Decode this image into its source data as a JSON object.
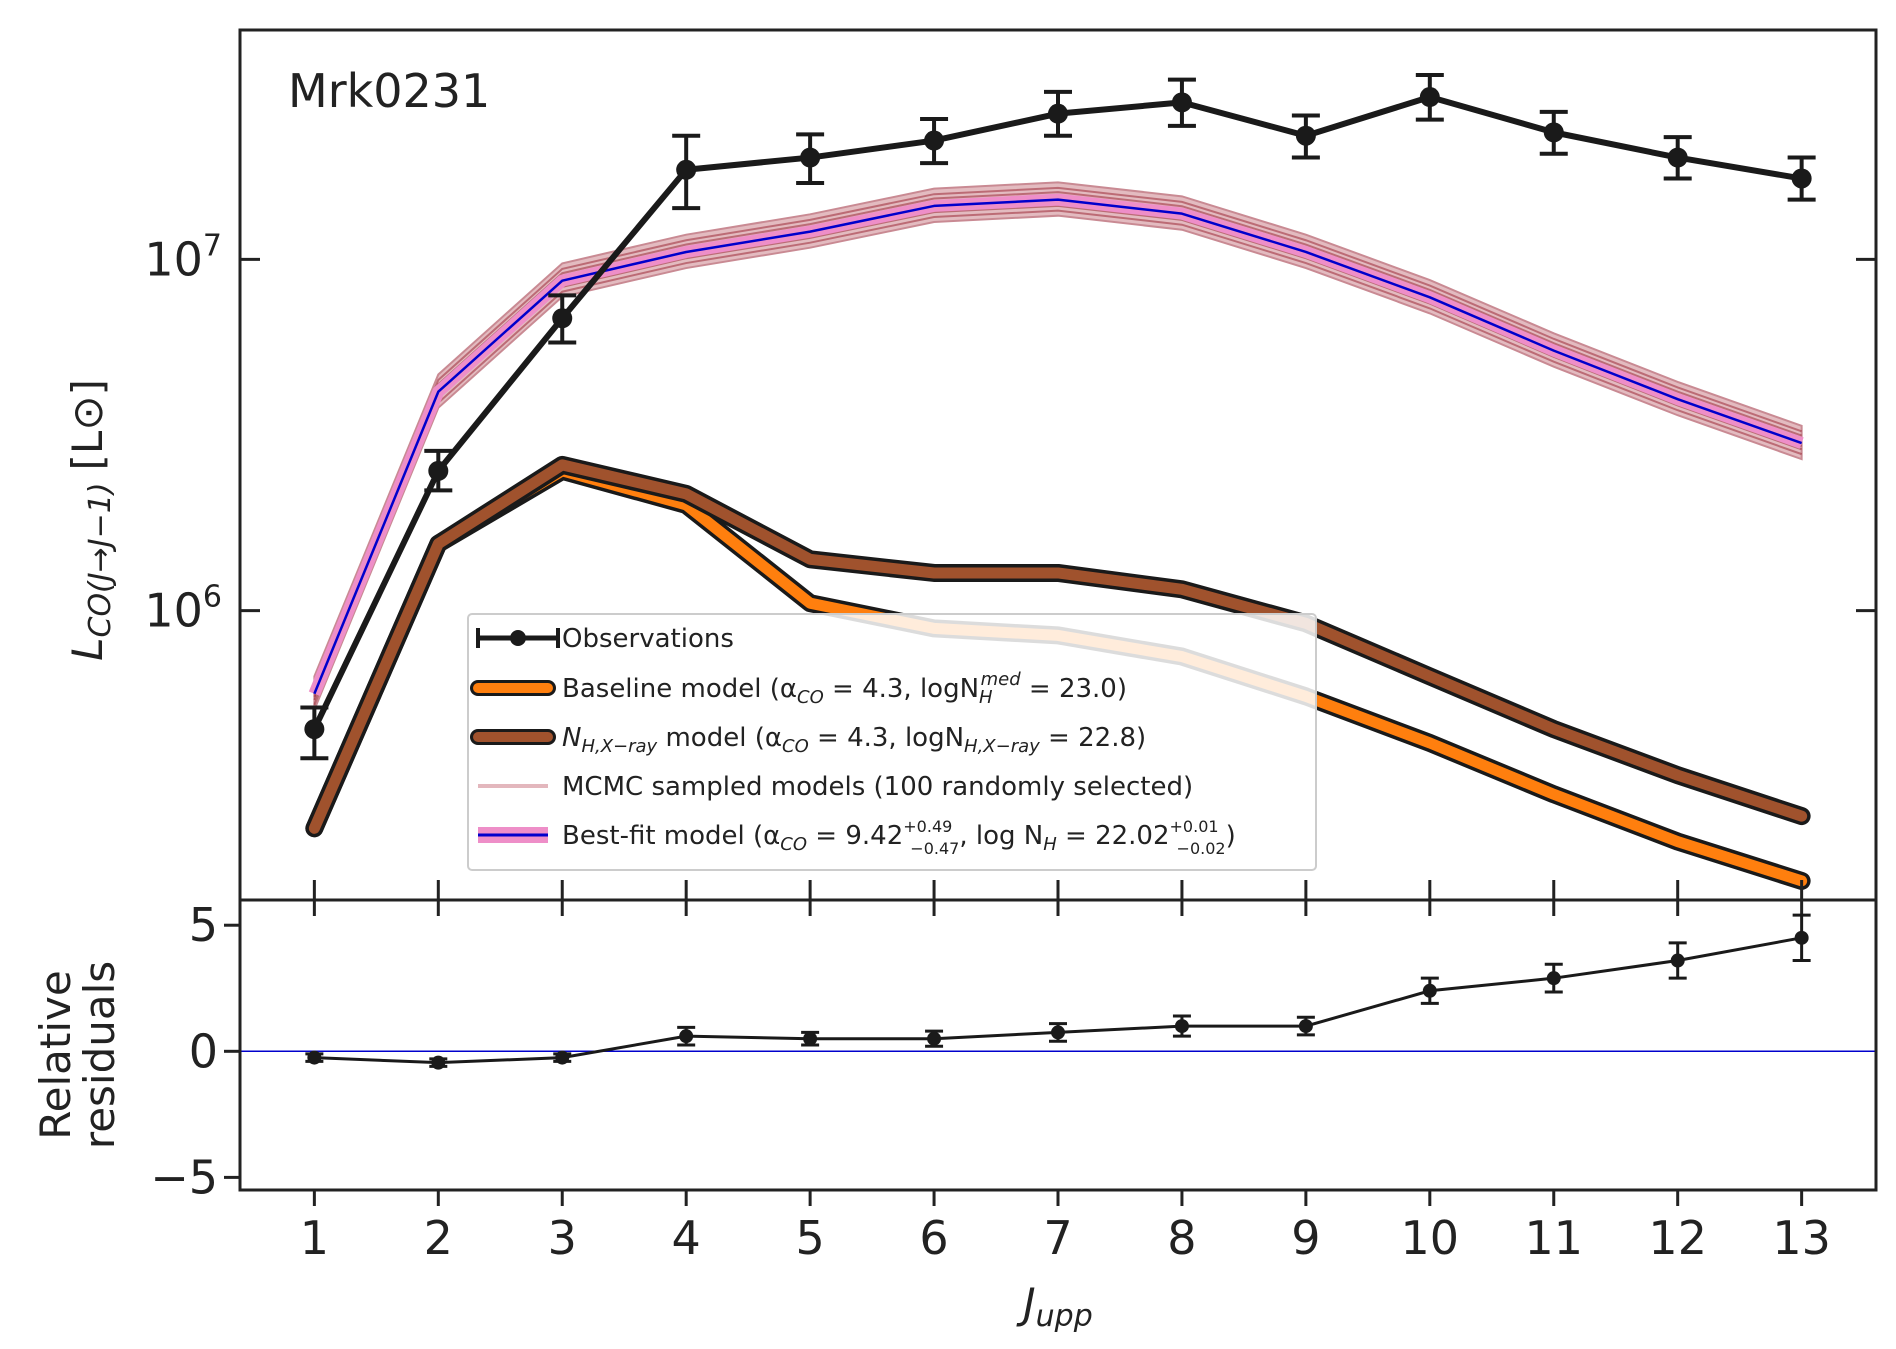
{
  "chart_data": [
    {
      "type": "line",
      "panel": "main",
      "title": "Mrk0231",
      "xlabel": "J",
      "xlabel_sub": "upp",
      "ylabel": "L",
      "ylabel_sub": "CO(J→J−1)",
      "ylabel_unit": "[L⊙]",
      "yscale": "log",
      "ylim": [
        150000,
        45000000
      ],
      "xlim": [
        0.4,
        13.6
      ],
      "x": [
        1,
        2,
        3,
        4,
        5,
        6,
        7,
        8,
        9,
        10,
        11,
        12,
        13
      ],
      "y_ticks": [
        {
          "value": 1000000,
          "base": "10",
          "exp": "6"
        },
        {
          "value": 10000000,
          "base": "10",
          "exp": "7"
        }
      ],
      "x_tick_labels": [
        "1",
        "2",
        "3",
        "4",
        "5",
        "6",
        "7",
        "8",
        "9",
        "10",
        "11",
        "12",
        "13"
      ],
      "series": [
        {
          "name": "Observations",
          "values": [
            460000,
            2500000,
            6800000,
            18000000,
            19500000,
            21800000,
            26000000,
            28000000,
            22500000,
            29000000,
            23000000,
            19500000,
            17000000
          ],
          "err_lo": [
            80000,
            300000,
            1000000,
            4000000,
            3000000,
            3000000,
            3500000,
            4000000,
            3000000,
            4000000,
            3000000,
            2500000,
            2200000
          ],
          "err_hi": [
            70000,
            350000,
            1100000,
            4500000,
            3200000,
            3300000,
            4000000,
            4500000,
            3200000,
            4500000,
            3300000,
            2800000,
            2500000
          ],
          "color": "#1a1a1a"
        },
        {
          "name": "Baseline model (αCO = 4.3, logN_H^med = 23.0)",
          "values": [
            240000,
            1550000,
            2500000,
            2000000,
            1050000,
            890000,
            850000,
            740000,
            570000,
            420000,
            300000,
            220000,
            170000
          ],
          "color": "#ff7f0e"
        },
        {
          "name": "N_H,X−ray model (αCO = 4.3, logN_H,X−ray = 22.8)",
          "values": [
            240000,
            1550000,
            2600000,
            2150000,
            1400000,
            1280000,
            1280000,
            1150000,
            920000,
            650000,
            460000,
            340000,
            260000
          ],
          "color": "#a0522d"
        },
        {
          "name": "MCMC sampled models (100 randomly selected)",
          "values": [
            580000,
            4200000,
            8700000,
            10500000,
            12000000,
            14200000,
            14800000,
            13500000,
            10500000,
            7800000,
            5500000,
            4000000,
            3000000
          ],
          "color": "#e3b7bd"
        },
        {
          "name": "Best-fit model (αCO = 9.42, log N_H = 22.02)",
          "values": [
            580000,
            4200000,
            8700000,
            10500000,
            12000000,
            14200000,
            14800000,
            13500000,
            10500000,
            7800000,
            5500000,
            4000000,
            3000000
          ],
          "color": "#0000cc",
          "band_color": "#ee8ec8"
        }
      ]
    },
    {
      "type": "line",
      "panel": "residuals",
      "ylabel_line1": "Relative",
      "ylabel_line2": "residuals",
      "ylim": [
        -5.5,
        6
      ],
      "xlim": [
        0.4,
        13.6
      ],
      "y_ticks": [
        -5,
        0,
        5
      ],
      "y_tick_labels": [
        "−5",
        "0",
        "5"
      ],
      "x": [
        1,
        2,
        3,
        4,
        5,
        6,
        7,
        8,
        9,
        10,
        11,
        12,
        13
      ],
      "series": [
        {
          "name": "Relative residuals",
          "values": [
            -0.25,
            -0.45,
            -0.25,
            0.6,
            0.5,
            0.5,
            0.75,
            1.0,
            1.0,
            2.4,
            2.9,
            3.6,
            4.5
          ],
          "err": [
            0.15,
            0.15,
            0.15,
            0.35,
            0.25,
            0.3,
            0.35,
            0.4,
            0.35,
            0.5,
            0.55,
            0.7,
            0.9
          ],
          "color": "#1a1a1a"
        }
      ],
      "reference_line": {
        "value": 0,
        "color": "#0000cc"
      }
    }
  ],
  "legend": {
    "location": "lower-center",
    "entries": [
      {
        "key": "obs",
        "label": "Observations"
      },
      {
        "key": "baseline",
        "label": "Baseline model (α",
        "sub1": "CO",
        "mid": " = 4.3, logN",
        "sub2": "H",
        "sup2": "med",
        "end": " = 23.0)"
      },
      {
        "key": "nhx",
        "label": "N",
        "sub1": "H,X−ray",
        "mid": " model (α",
        "sub2": "CO",
        "mid2": " = 4.3, logN",
        "sub3": "H,X−ray",
        "end": " = 22.8)"
      },
      {
        "key": "mcmc",
        "label": "MCMC sampled models (100 randomly selected)"
      },
      {
        "key": "best",
        "label": "Best-fit model (α",
        "sub1": "CO",
        "mid": " = 9.42",
        "up1": "+0.49",
        "lo1": "−0.47",
        "mid2": ", log N",
        "sub2": "H",
        "mid3": " = 22.02",
        "up2": "+0.01",
        "lo2": "−0.02",
        "end": ")"
      }
    ]
  }
}
